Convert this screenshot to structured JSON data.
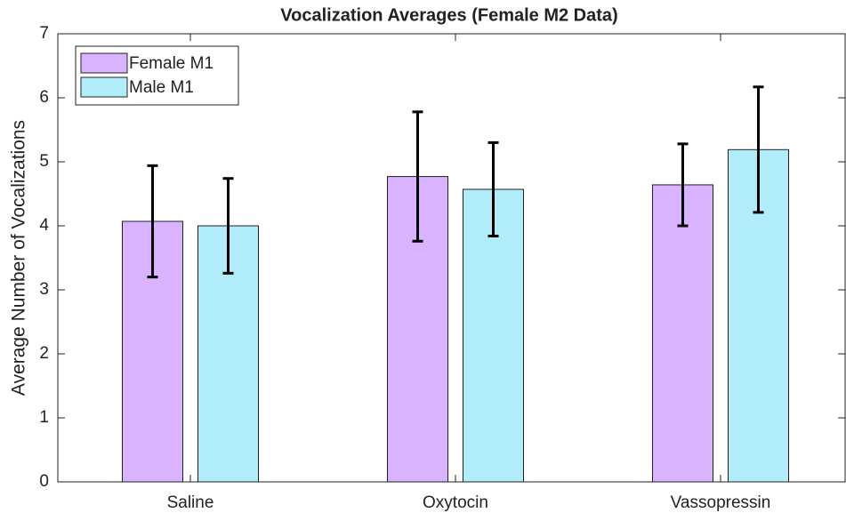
{
  "chart_data": {
    "type": "bar",
    "title": "Vocalization Averages (Female M2 Data)",
    "y_label": "Average Number of Vocalizations",
    "categories": [
      "Saline",
      "Oxytocin",
      "Vassopressin"
    ],
    "series": [
      {
        "name": "Female M1",
        "color": "#d9b3ff",
        "values": [
          4.07,
          4.77,
          4.64
        ],
        "errors": [
          0.87,
          1.01,
          0.64
        ]
      },
      {
        "name": "Male M1",
        "color": "#b0ecfa",
        "values": [
          4.0,
          4.57,
          5.19
        ],
        "errors": [
          0.74,
          0.73,
          0.98
        ]
      }
    ],
    "ylim": [
      0,
      7
    ],
    "yticks": [
      0,
      1,
      2,
      3,
      4,
      5,
      6,
      7
    ],
    "grid": false,
    "legend": "upper left"
  }
}
